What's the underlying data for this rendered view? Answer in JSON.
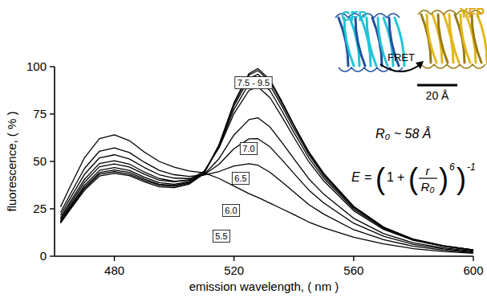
{
  "chart_data": {
    "type": "line",
    "xlabel": "emission wavelength, ( nm )",
    "ylabel": "fluorescence, ( % )",
    "x": [
      462,
      465,
      470,
      475,
      480,
      485,
      490,
      495,
      500,
      505,
      510,
      515,
      520,
      525,
      528,
      532,
      536,
      540,
      545,
      550,
      560,
      570,
      580,
      590,
      600
    ],
    "xlim": [
      460,
      600
    ],
    "xticks": [
      480,
      520,
      560,
      600
    ],
    "ylim": [
      0,
      100
    ],
    "yticks": [
      0,
      25,
      50,
      75,
      100
    ],
    "grid": false,
    "color": "#000000",
    "series": [
      {
        "name": "5.5",
        "values": [
          26,
          36,
          52,
          62,
          64,
          61,
          55,
          50,
          47,
          45,
          44,
          41,
          37,
          33,
          31,
          28,
          25,
          22,
          18,
          15,
          10,
          6.5,
          4,
          2.5,
          1.5
        ]
      },
      {
        "name": "6.0",
        "values": [
          23.1,
          32.0,
          46.3,
          55.4,
          57.2,
          54.7,
          49.6,
          45.3,
          43.0,
          42.1,
          42.9,
          44.7,
          47.6,
          48.8,
          48.0,
          44.3,
          39.2,
          33.9,
          27.2,
          22.2,
          14.0,
          8.7,
          5.2,
          3.2,
          1.9
        ]
      },
      {
        "name": "6.5",
        "values": [
          21.6,
          29.9,
          43.2,
          51.9,
          53.5,
          51.3,
          46.8,
          43.0,
          41.2,
          41.0,
          43.0,
          48.5,
          56.8,
          61.9,
          62.0,
          57.7,
          50.9,
          43.7,
          34.9,
          28.1,
          17.4,
          10.5,
          6.2,
          3.9,
          2.3
        ]
      },
      {
        "name": "7.0",
        "values": [
          20.3,
          28.1,
          40.6,
          48.9,
          50.4,
          48.6,
          44.4,
          41.0,
          39.6,
          40.0,
          43.1,
          51.5,
          64.0,
          72.1,
          73.0,
          68.2,
          60.0,
          51.4,
          40.8,
          32.7,
          20.0,
          11.9,
          7.0,
          4.4,
          2.7
        ]
      },
      {
        "name": "7.5 - 9.5",
        "values": [
          19.5,
          27.0,
          39.0,
          47.2,
          48.7,
          47.1,
          43.3,
          40.1,
          39.3,
          40.4,
          44.9,
          57.2,
          75.3,
          87.5,
          89.3,
          83.7,
          73.6,
          62.7,
          49.8,
          39.7,
          24.0,
          14.1,
          8.3,
          5.2,
          3.1
        ]
      },
      {
        "values": [
          18.7,
          25.9,
          37.4,
          45.3,
          46.8,
          45.3,
          41.7,
          38.8,
          38.0,
          39.5,
          44.4,
          57.8,
          77.5,
          91.0,
          93.0,
          87.4,
          76.7,
          65.3,
          51.9,
          41.2,
          24.9,
          14.6,
          8.6,
          5.3,
          3.2
        ]
      },
      {
        "values": [
          18.2,
          25.2,
          36.4,
          44.1,
          45.5,
          44.2,
          40.7,
          38.0,
          37.4,
          38.9,
          44.2,
          58.4,
          79.4,
          93.7,
          96.0,
          90.2,
          79.2,
          67.4,
          53.5,
          42.4,
          25.6,
          15.0,
          8.7,
          5.5,
          3.3
        ]
      },
      {
        "values": [
          17.8,
          24.7,
          35.6,
          43.3,
          44.6,
          43.3,
          40.0,
          37.4,
          36.8,
          38.5,
          43.9,
          58.8,
          80.6,
          95.6,
          98.0,
          92.2,
          80.8,
          68.9,
          54.5,
          43.3,
          26.1,
          15.3,
          8.8,
          5.5,
          3.3
        ]
      },
      {
        "values": [
          17.4,
          24.1,
          34.8,
          42.3,
          43.7,
          42.5,
          39.2,
          36.6,
          36.2,
          38.0,
          43.6,
          58.8,
          81.1,
          96.4,
          99.0,
          93.1,
          81.7,
          69.4,
          55.1,
          43.7,
          26.3,
          15.3,
          9.0,
          5.6,
          3.3
        ]
      }
    ],
    "annotations": {
      "donor": "CFP",
      "acceptor": "YFP",
      "transfer": "FRET",
      "scale_bar": "20 Å",
      "forster_radius": "R₀ ~ 58 Å",
      "equation": {
        "lhs": "E",
        "equals": "=",
        "open": "(",
        "one": "1",
        "plus": "+",
        "numerator": "r",
        "denominator": "R₀",
        "close": ")",
        "exponent": "6",
        "outer_exponent": "-1"
      }
    }
  }
}
